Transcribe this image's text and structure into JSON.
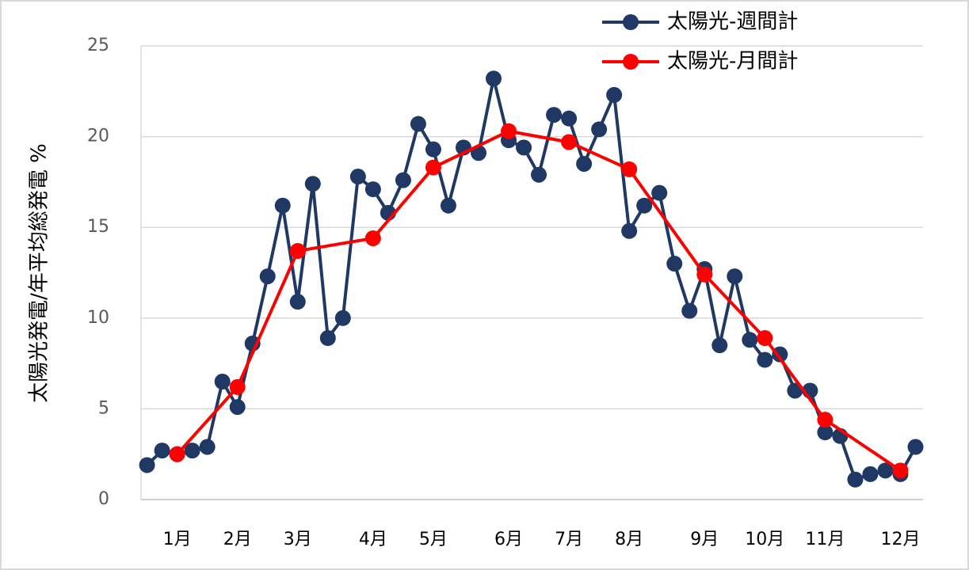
{
  "chart_data": {
    "type": "line",
    "ylabel": "太陽光発電/年平均総発電 %",
    "xlim": [
      0.6,
      52.5
    ],
    "xticks": [
      {
        "value": 3,
        "label": "1月"
      },
      {
        "value": 7,
        "label": "2月"
      },
      {
        "value": 11,
        "label": "3月"
      },
      {
        "value": 16,
        "label": "4月"
      },
      {
        "value": 20,
        "label": "5月"
      },
      {
        "value": 25,
        "label": "6月"
      },
      {
        "value": 29,
        "label": "7月"
      },
      {
        "value": 33,
        "label": "8月"
      },
      {
        "value": 38,
        "label": "9月"
      },
      {
        "value": 42,
        "label": "10月"
      },
      {
        "value": 46,
        "label": "11月"
      },
      {
        "value": 51,
        "label": "12月"
      }
    ],
    "ylim": [
      0,
      25
    ],
    "yticks": [
      0,
      5,
      10,
      15,
      20,
      25
    ],
    "grid": true,
    "legend": "top-right",
    "series": [
      {
        "name": "太陽光-週間計",
        "color": "#203864",
        "x": [
          1,
          2,
          3,
          4,
          5,
          6,
          7,
          8,
          9,
          10,
          11,
          12,
          13,
          14,
          15,
          16,
          17,
          18,
          19,
          20,
          21,
          22,
          23,
          24,
          25,
          26,
          27,
          28,
          29,
          30,
          31,
          32,
          33,
          34,
          35,
          36,
          37,
          38,
          39,
          40,
          41,
          42,
          43,
          44,
          45,
          46,
          47,
          48,
          49,
          50,
          51,
          52
        ],
        "values": [
          1.9,
          2.7,
          2.5,
          2.7,
          2.9,
          6.5,
          5.1,
          8.6,
          12.3,
          16.2,
          10.9,
          17.4,
          8.9,
          10.0,
          17.8,
          17.1,
          15.8,
          17.6,
          20.7,
          19.3,
          16.2,
          19.4,
          19.1,
          23.2,
          19.8,
          19.4,
          17.9,
          21.2,
          21.0,
          18.5,
          20.4,
          22.3,
          14.8,
          16.2,
          16.9,
          13.0,
          10.4,
          12.7,
          8.5,
          12.3,
          8.8,
          7.7,
          8.0,
          6.0,
          6.0,
          3.7,
          3.5,
          1.1,
          1.4,
          1.6,
          1.4,
          2.9
        ]
      },
      {
        "name": "太陽光-月間計",
        "color": "#ff0000",
        "x": [
          3,
          7,
          11,
          16,
          20,
          25,
          29,
          33,
          38,
          42,
          46,
          51
        ],
        "values": [
          2.5,
          6.2,
          13.7,
          14.4,
          18.3,
          20.3,
          19.7,
          18.2,
          12.4,
          8.9,
          4.4,
          1.6
        ]
      }
    ]
  }
}
